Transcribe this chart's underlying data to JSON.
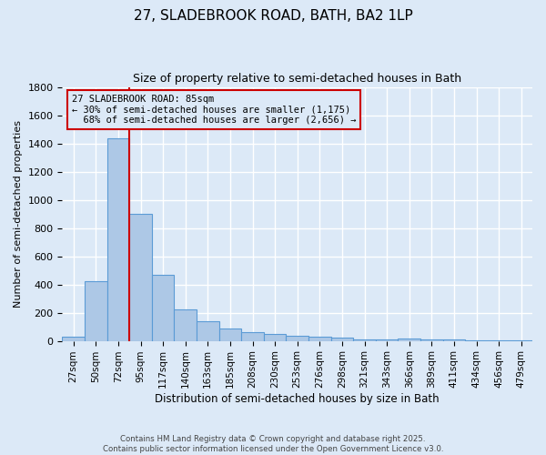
{
  "title": "27, SLADEBROOK ROAD, BATH, BA2 1LP",
  "subtitle": "Size of property relative to semi-detached houses in Bath",
  "xlabel": "Distribution of semi-detached houses by size in Bath",
  "ylabel": "Number of semi-detached properties",
  "categories": [
    "27sqm",
    "50sqm",
    "72sqm",
    "95sqm",
    "117sqm",
    "140sqm",
    "163sqm",
    "185sqm",
    "208sqm",
    "230sqm",
    "253sqm",
    "276sqm",
    "298sqm",
    "321sqm",
    "343sqm",
    "366sqm",
    "389sqm",
    "411sqm",
    "434sqm",
    "456sqm",
    "479sqm"
  ],
  "values": [
    27,
    425,
    1435,
    900,
    470,
    220,
    140,
    90,
    60,
    47,
    35,
    27,
    20,
    10,
    8,
    15,
    8,
    10,
    3,
    3,
    3
  ],
  "bar_color": "#adc8e6",
  "bar_edge_color": "#5b9bd5",
  "background_color": "#dce9f7",
  "grid_color": "#ffffff",
  "annotation_box_color": "#cc0000",
  "vline_color": "#cc0000",
  "vline_x_index": 2,
  "property_size": "85sqm",
  "property_name": "27 SLADEBROOK ROAD",
  "pct_smaller": 30,
  "pct_larger": 68,
  "n_smaller": 1175,
  "n_larger": 2656,
  "footer_line1": "Contains HM Land Registry data © Crown copyright and database right 2025.",
  "footer_line2": "Contains public sector information licensed under the Open Government Licence v3.0.",
  "ylim": [
    0,
    1800
  ],
  "yticks": [
    0,
    200,
    400,
    600,
    800,
    1000,
    1200,
    1400,
    1600,
    1800
  ]
}
